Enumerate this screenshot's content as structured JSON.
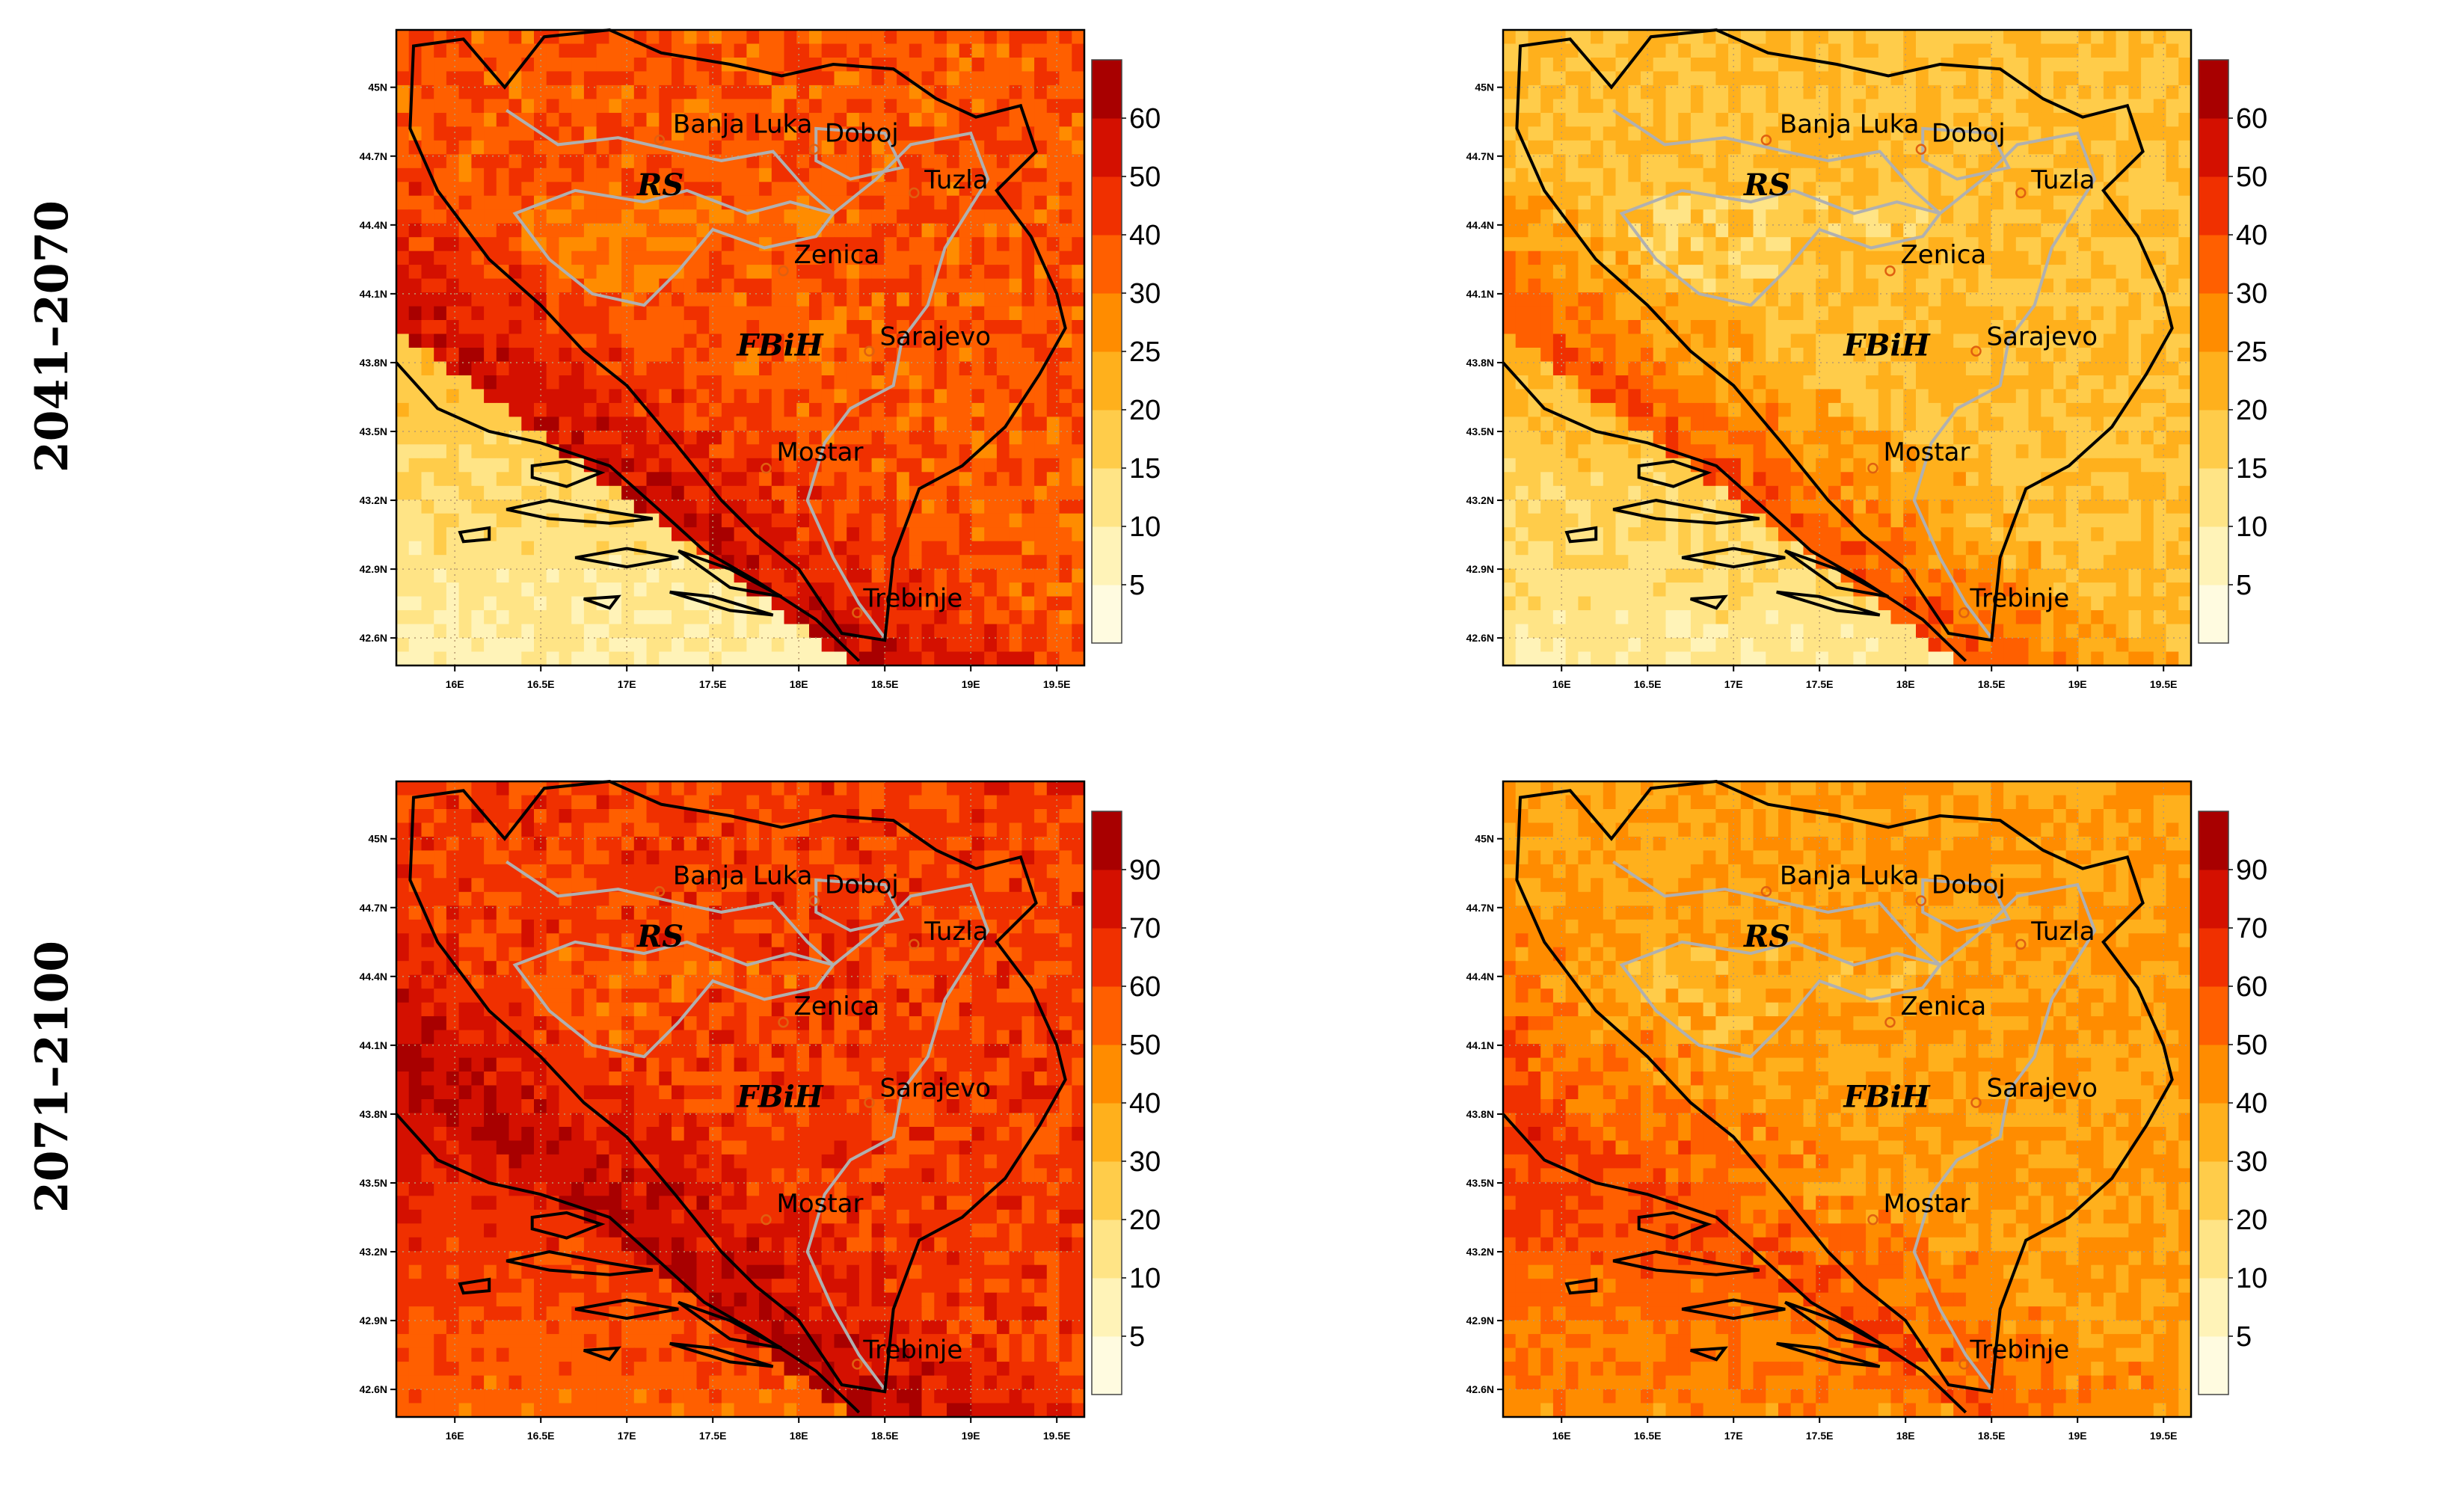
{
  "row_labels": [
    "2041–2070",
    "2071–2100"
  ],
  "lon_ticks": [
    "16E",
    "16.5E",
    "17E",
    "17.5E",
    "18E",
    "18.5E",
    "19E",
    "19.5E"
  ],
  "lat_ticks": [
    "45N",
    "44.7N",
    "44.4N",
    "44.1N",
    "43.8N",
    "43.5N",
    "43.2N",
    "42.9N",
    "42.6N"
  ],
  "cities": [
    {
      "name": "Banja Luka"
    },
    {
      "name": "Doboj"
    },
    {
      "name": "Tuzla"
    },
    {
      "name": "Zenica"
    },
    {
      "name": "Sarajevo"
    },
    {
      "name": "Mostar"
    },
    {
      "name": "Trebinje"
    }
  ],
  "regions": [
    "RS",
    "FBiH"
  ],
  "colorbar_palette": [
    "#fffbe0",
    "#fff3b8",
    "#ffe486",
    "#ffcc4a",
    "#ffb01c",
    "#ff8c00",
    "#ff5f00",
    "#f03000",
    "#d41000",
    "#a80000"
  ],
  "colorbars": {
    "top": [
      "5",
      "10",
      "15",
      "20",
      "25",
      "30",
      "40",
      "50",
      "60"
    ],
    "bottom": [
      "5",
      "10",
      "20",
      "30",
      "40",
      "50",
      "60",
      "70",
      "90"
    ]
  },
  "panels": [
    {
      "id": "top-left",
      "row": "2041–2070",
      "colorbar": "top",
      "level_base": 6.2,
      "level_gradient": 2.2,
      "sea_level": 0.8
    },
    {
      "id": "top-right",
      "row": "2041–2070",
      "colorbar": "top",
      "level_base": 3.5,
      "level_gradient": 3.0,
      "sea_level": 1.2
    },
    {
      "id": "bottom-left",
      "row": "2071–2100",
      "colorbar": "bottom",
      "level_base": 6.8,
      "level_gradient": 2.0,
      "sea_level": 5.4
    },
    {
      "id": "bottom-right",
      "row": "2071–2100",
      "colorbar": "bottom",
      "level_base": 4.5,
      "level_gradient": 1.8,
      "sea_level": 4.6
    }
  ]
}
